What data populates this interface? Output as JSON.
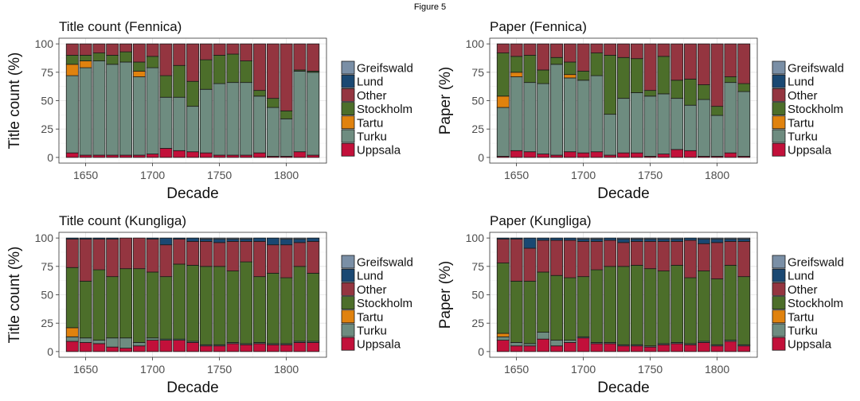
{
  "figure": {
    "title": "Figure 5"
  },
  "legend": {
    "entries": [
      {
        "name": "Greifswald",
        "color": "#7A8FA6"
      },
      {
        "name": "Lund",
        "color": "#1A4872"
      },
      {
        "name": "Other",
        "color": "#943540"
      },
      {
        "name": "Stockholm",
        "color": "#4C6E2A"
      },
      {
        "name": "Tartu",
        "color": "#E0820E"
      },
      {
        "name": "Turku",
        "color": "#6E8C80"
      },
      {
        "name": "Uppsala",
        "color": "#C2103A"
      }
    ]
  },
  "chart_data": [
    {
      "type": "bar",
      "stacked": true,
      "title": "Title count (Fennica)",
      "xlabel": "Decade",
      "ylabel": "Title count (%)",
      "ylim": [
        0,
        100
      ],
      "xlim": [
        1630,
        1830
      ],
      "xticks": [
        1650,
        1700,
        1750,
        1800
      ],
      "yticks": [
        0,
        25,
        50,
        75,
        100
      ],
      "categories": [
        1640,
        1650,
        1660,
        1670,
        1680,
        1690,
        1700,
        1710,
        1720,
        1730,
        1740,
        1750,
        1760,
        1770,
        1780,
        1790,
        1800,
        1810,
        1820
      ],
      "series": [
        {
          "name": "Uppsala",
          "values": [
            4,
            2,
            2,
            2,
            2,
            2,
            3,
            8,
            6,
            5,
            4,
            2,
            2,
            2,
            4,
            1,
            1,
            5,
            2
          ]
        },
        {
          "name": "Turku",
          "values": [
            68,
            77,
            83,
            80,
            82,
            69,
            76,
            45,
            47,
            40,
            56,
            63,
            64,
            64,
            50,
            43,
            33,
            71,
            73
          ]
        },
        {
          "name": "Tartu",
          "values": [
            10,
            6,
            0,
            0,
            0,
            5,
            0,
            0,
            0,
            0,
            0,
            0,
            0,
            0,
            0,
            0,
            0,
            0,
            0
          ]
        },
        {
          "name": "Stockholm",
          "values": [
            8,
            5,
            7,
            8,
            9,
            8,
            10,
            19,
            28,
            22,
            26,
            25,
            25,
            19,
            5,
            8,
            7,
            1,
            1
          ]
        },
        {
          "name": "Other",
          "values": [
            10,
            10,
            8,
            10,
            7,
            16,
            11,
            28,
            19,
            33,
            14,
            10,
            9,
            15,
            41,
            48,
            59,
            23,
            24
          ]
        },
        {
          "name": "Lund",
          "values": [
            0,
            0,
            0,
            0,
            0,
            0,
            0,
            0,
            0,
            0,
            0,
            0,
            0,
            0,
            0,
            0,
            0,
            0,
            0
          ]
        },
        {
          "name": "Greifswald",
          "values": [
            0,
            0,
            0,
            0,
            0,
            0,
            0,
            0,
            0,
            0,
            0,
            0,
            0,
            0,
            0,
            0,
            0,
            0,
            0
          ]
        }
      ]
    },
    {
      "type": "bar",
      "stacked": true,
      "title": "Paper (Fennica)",
      "xlabel": "Decade",
      "ylabel": "Paper (%)",
      "ylim": [
        0,
        100
      ],
      "xlim": [
        1630,
        1830
      ],
      "xticks": [
        1650,
        1700,
        1750,
        1800
      ],
      "yticks": [
        0,
        25,
        50,
        75,
        100
      ],
      "categories": [
        1640,
        1650,
        1660,
        1670,
        1680,
        1690,
        1700,
        1710,
        1720,
        1730,
        1740,
        1750,
        1760,
        1770,
        1780,
        1790,
        1800,
        1810,
        1820
      ],
      "series": [
        {
          "name": "Uppsala",
          "values": [
            1,
            6,
            5,
            3,
            2,
            5,
            4,
            5,
            2,
            4,
            4,
            1,
            3,
            7,
            6,
            1,
            1,
            4,
            1
          ]
        },
        {
          "name": "Turku",
          "values": [
            43,
            65,
            61,
            62,
            80,
            65,
            64,
            67,
            36,
            48,
            53,
            53,
            53,
            45,
            40,
            50,
            36,
            62,
            57
          ]
        },
        {
          "name": "Tartu",
          "values": [
            10,
            4,
            0,
            0,
            0,
            3,
            0,
            0,
            0,
            0,
            0,
            0,
            0,
            0,
            0,
            0,
            0,
            0,
            0
          ]
        },
        {
          "name": "Stockholm",
          "values": [
            38,
            14,
            24,
            12,
            6,
            11,
            8,
            20,
            52,
            36,
            30,
            5,
            33,
            16,
            23,
            13,
            8,
            5,
            7
          ]
        },
        {
          "name": "Other",
          "values": [
            8,
            11,
            10,
            23,
            12,
            16,
            24,
            8,
            10,
            12,
            13,
            41,
            11,
            32,
            31,
            36,
            55,
            29,
            35
          ]
        },
        {
          "name": "Lund",
          "values": [
            0,
            0,
            0,
            0,
            0,
            0,
            0,
            0,
            0,
            0,
            0,
            0,
            0,
            0,
            0,
            0,
            0,
            0,
            0
          ]
        },
        {
          "name": "Greifswald",
          "values": [
            0,
            0,
            0,
            0,
            0,
            0,
            0,
            0,
            0,
            0,
            0,
            0,
            0,
            0,
            0,
            0,
            0,
            0,
            0
          ]
        }
      ]
    },
    {
      "type": "bar",
      "stacked": true,
      "title": "Title count (Kungliga)",
      "xlabel": "Decade",
      "ylabel": "Title count (%)",
      "ylim": [
        0,
        100
      ],
      "xlim": [
        1630,
        1830
      ],
      "xticks": [
        1650,
        1700,
        1750,
        1800
      ],
      "yticks": [
        0,
        25,
        50,
        75,
        100
      ],
      "categories": [
        1640,
        1650,
        1660,
        1670,
        1680,
        1690,
        1700,
        1710,
        1720,
        1730,
        1740,
        1750,
        1760,
        1770,
        1780,
        1790,
        1800,
        1810,
        1820
      ],
      "series": [
        {
          "name": "Uppsala",
          "values": [
            9,
            8,
            7,
            4,
            3,
            5,
            10,
            10,
            10,
            8,
            5,
            5,
            7,
            6,
            7,
            6,
            6,
            8,
            8
          ]
        },
        {
          "name": "Turku",
          "values": [
            4,
            4,
            3,
            8,
            9,
            3,
            2,
            1,
            1,
            1,
            1,
            1,
            1,
            1,
            1,
            1,
            1,
            1,
            1
          ]
        },
        {
          "name": "Tartu",
          "values": [
            8,
            0,
            0,
            0,
            0,
            0,
            0,
            0,
            0,
            0,
            0,
            0,
            0,
            0,
            0,
            0,
            0,
            0,
            0
          ]
        },
        {
          "name": "Stockholm",
          "values": [
            53,
            50,
            62,
            54,
            61,
            65,
            58,
            55,
            66,
            67,
            69,
            69,
            63,
            72,
            58,
            62,
            58,
            66,
            60
          ]
        },
        {
          "name": "Other",
          "values": [
            25,
            37,
            27,
            33,
            27,
            27,
            29,
            28,
            22,
            21,
            22,
            21,
            26,
            18,
            31,
            25,
            29,
            21,
            28
          ]
        },
        {
          "name": "Lund",
          "values": [
            1,
            1,
            1,
            1,
            0,
            0,
            1,
            6,
            1,
            3,
            2,
            3,
            2,
            2,
            3,
            6,
            5,
            3,
            3
          ]
        },
        {
          "name": "Greifswald",
          "values": [
            0,
            0,
            0,
            0,
            0,
            0,
            0,
            0,
            0,
            0,
            1,
            1,
            1,
            1,
            0,
            0,
            1,
            1,
            0
          ]
        }
      ]
    },
    {
      "type": "bar",
      "stacked": true,
      "title": "Paper (Kungliga)",
      "xlabel": "Decade",
      "ylabel": "Paper (%)",
      "ylim": [
        0,
        100
      ],
      "xlim": [
        1630,
        1830
      ],
      "xticks": [
        1650,
        1700,
        1750,
        1800
      ],
      "yticks": [
        0,
        25,
        50,
        75,
        100
      ],
      "categories": [
        1640,
        1650,
        1660,
        1670,
        1680,
        1690,
        1700,
        1710,
        1720,
        1730,
        1740,
        1750,
        1760,
        1770,
        1780,
        1790,
        1800,
        1810,
        1820
      ],
      "series": [
        {
          "name": "Uppsala",
          "values": [
            10,
            5,
            5,
            11,
            5,
            8,
            12,
            7,
            7,
            5,
            5,
            4,
            6,
            7,
            6,
            8,
            5,
            9,
            5
          ]
        },
        {
          "name": "Turku",
          "values": [
            3,
            3,
            2,
            6,
            5,
            2,
            1,
            1,
            1,
            1,
            1,
            1,
            1,
            1,
            1,
            1,
            1,
            1,
            1
          ]
        },
        {
          "name": "Tartu",
          "values": [
            3,
            0,
            0,
            0,
            0,
            0,
            0,
            0,
            0,
            0,
            0,
            0,
            0,
            0,
            0,
            0,
            0,
            0,
            0
          ]
        },
        {
          "name": "Stockholm",
          "values": [
            62,
            54,
            55,
            53,
            57,
            55,
            53,
            64,
            67,
            69,
            70,
            68,
            64,
            68,
            58,
            62,
            58,
            66,
            60
          ]
        },
        {
          "name": "Other",
          "values": [
            21,
            37,
            29,
            28,
            31,
            33,
            31,
            25,
            23,
            21,
            21,
            24,
            26,
            21,
            33,
            24,
            32,
            21,
            31
          ]
        },
        {
          "name": "Lund",
          "values": [
            1,
            1,
            9,
            2,
            2,
            2,
            2,
            2,
            2,
            3,
            2,
            2,
            2,
            2,
            2,
            4,
            3,
            2,
            2
          ]
        },
        {
          "name": "Greifswald",
          "values": [
            0,
            0,
            0,
            0,
            0,
            0,
            1,
            1,
            0,
            1,
            1,
            1,
            1,
            1,
            0,
            1,
            1,
            1,
            1
          ]
        }
      ]
    }
  ]
}
